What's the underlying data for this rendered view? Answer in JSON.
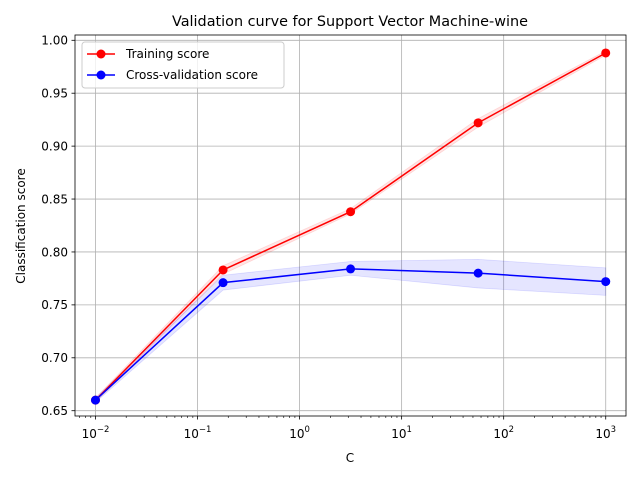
{
  "chart_data": {
    "type": "line",
    "title": "Validation curve for Support Vector Machine-wine",
    "xlabel": "C",
    "ylabel": "Classification score",
    "xscale": "log",
    "xlim": [
      0.0063,
      1580
    ],
    "ylim": [
      0.645,
      1.005
    ],
    "x_ticks": [
      0.01,
      0.1,
      1,
      10,
      100,
      1000
    ],
    "x_tick_labels": [
      {
        "base": "10",
        "exp": "−2"
      },
      {
        "base": "10",
        "exp": "−1"
      },
      {
        "base": "10",
        "exp": "0"
      },
      {
        "base": "10",
        "exp": "1"
      },
      {
        "base": "10",
        "exp": "2"
      },
      {
        "base": "10",
        "exp": "3"
      }
    ],
    "y_ticks": [
      0.65,
      0.7,
      0.75,
      0.8,
      0.85,
      0.9,
      0.95,
      1.0
    ],
    "y_tick_labels": [
      "0.65",
      "0.70",
      "0.75",
      "0.80",
      "0.85",
      "0.90",
      "0.95",
      "1.00"
    ],
    "grid": true,
    "legend_position": "top-left",
    "x": [
      0.01,
      0.178,
      3.16,
      56.2,
      1000
    ],
    "series": [
      {
        "name": "Training score",
        "color": "#ff0000",
        "band_color": "#ff0000",
        "values": [
          0.66,
          0.783,
          0.838,
          0.922,
          0.988
        ],
        "band_lower": [
          0.658,
          0.779,
          0.836,
          0.918,
          0.986
        ],
        "band_upper": [
          0.662,
          0.787,
          0.841,
          0.926,
          0.99
        ]
      },
      {
        "name": "Cross-validation score",
        "color": "#0000ff",
        "band_color": "#0000ff",
        "values": [
          0.66,
          0.771,
          0.784,
          0.78,
          0.772
        ],
        "band_lower": [
          0.658,
          0.764,
          0.778,
          0.766,
          0.759
        ],
        "band_upper": [
          0.662,
          0.778,
          0.791,
          0.793,
          0.785
        ]
      }
    ]
  }
}
